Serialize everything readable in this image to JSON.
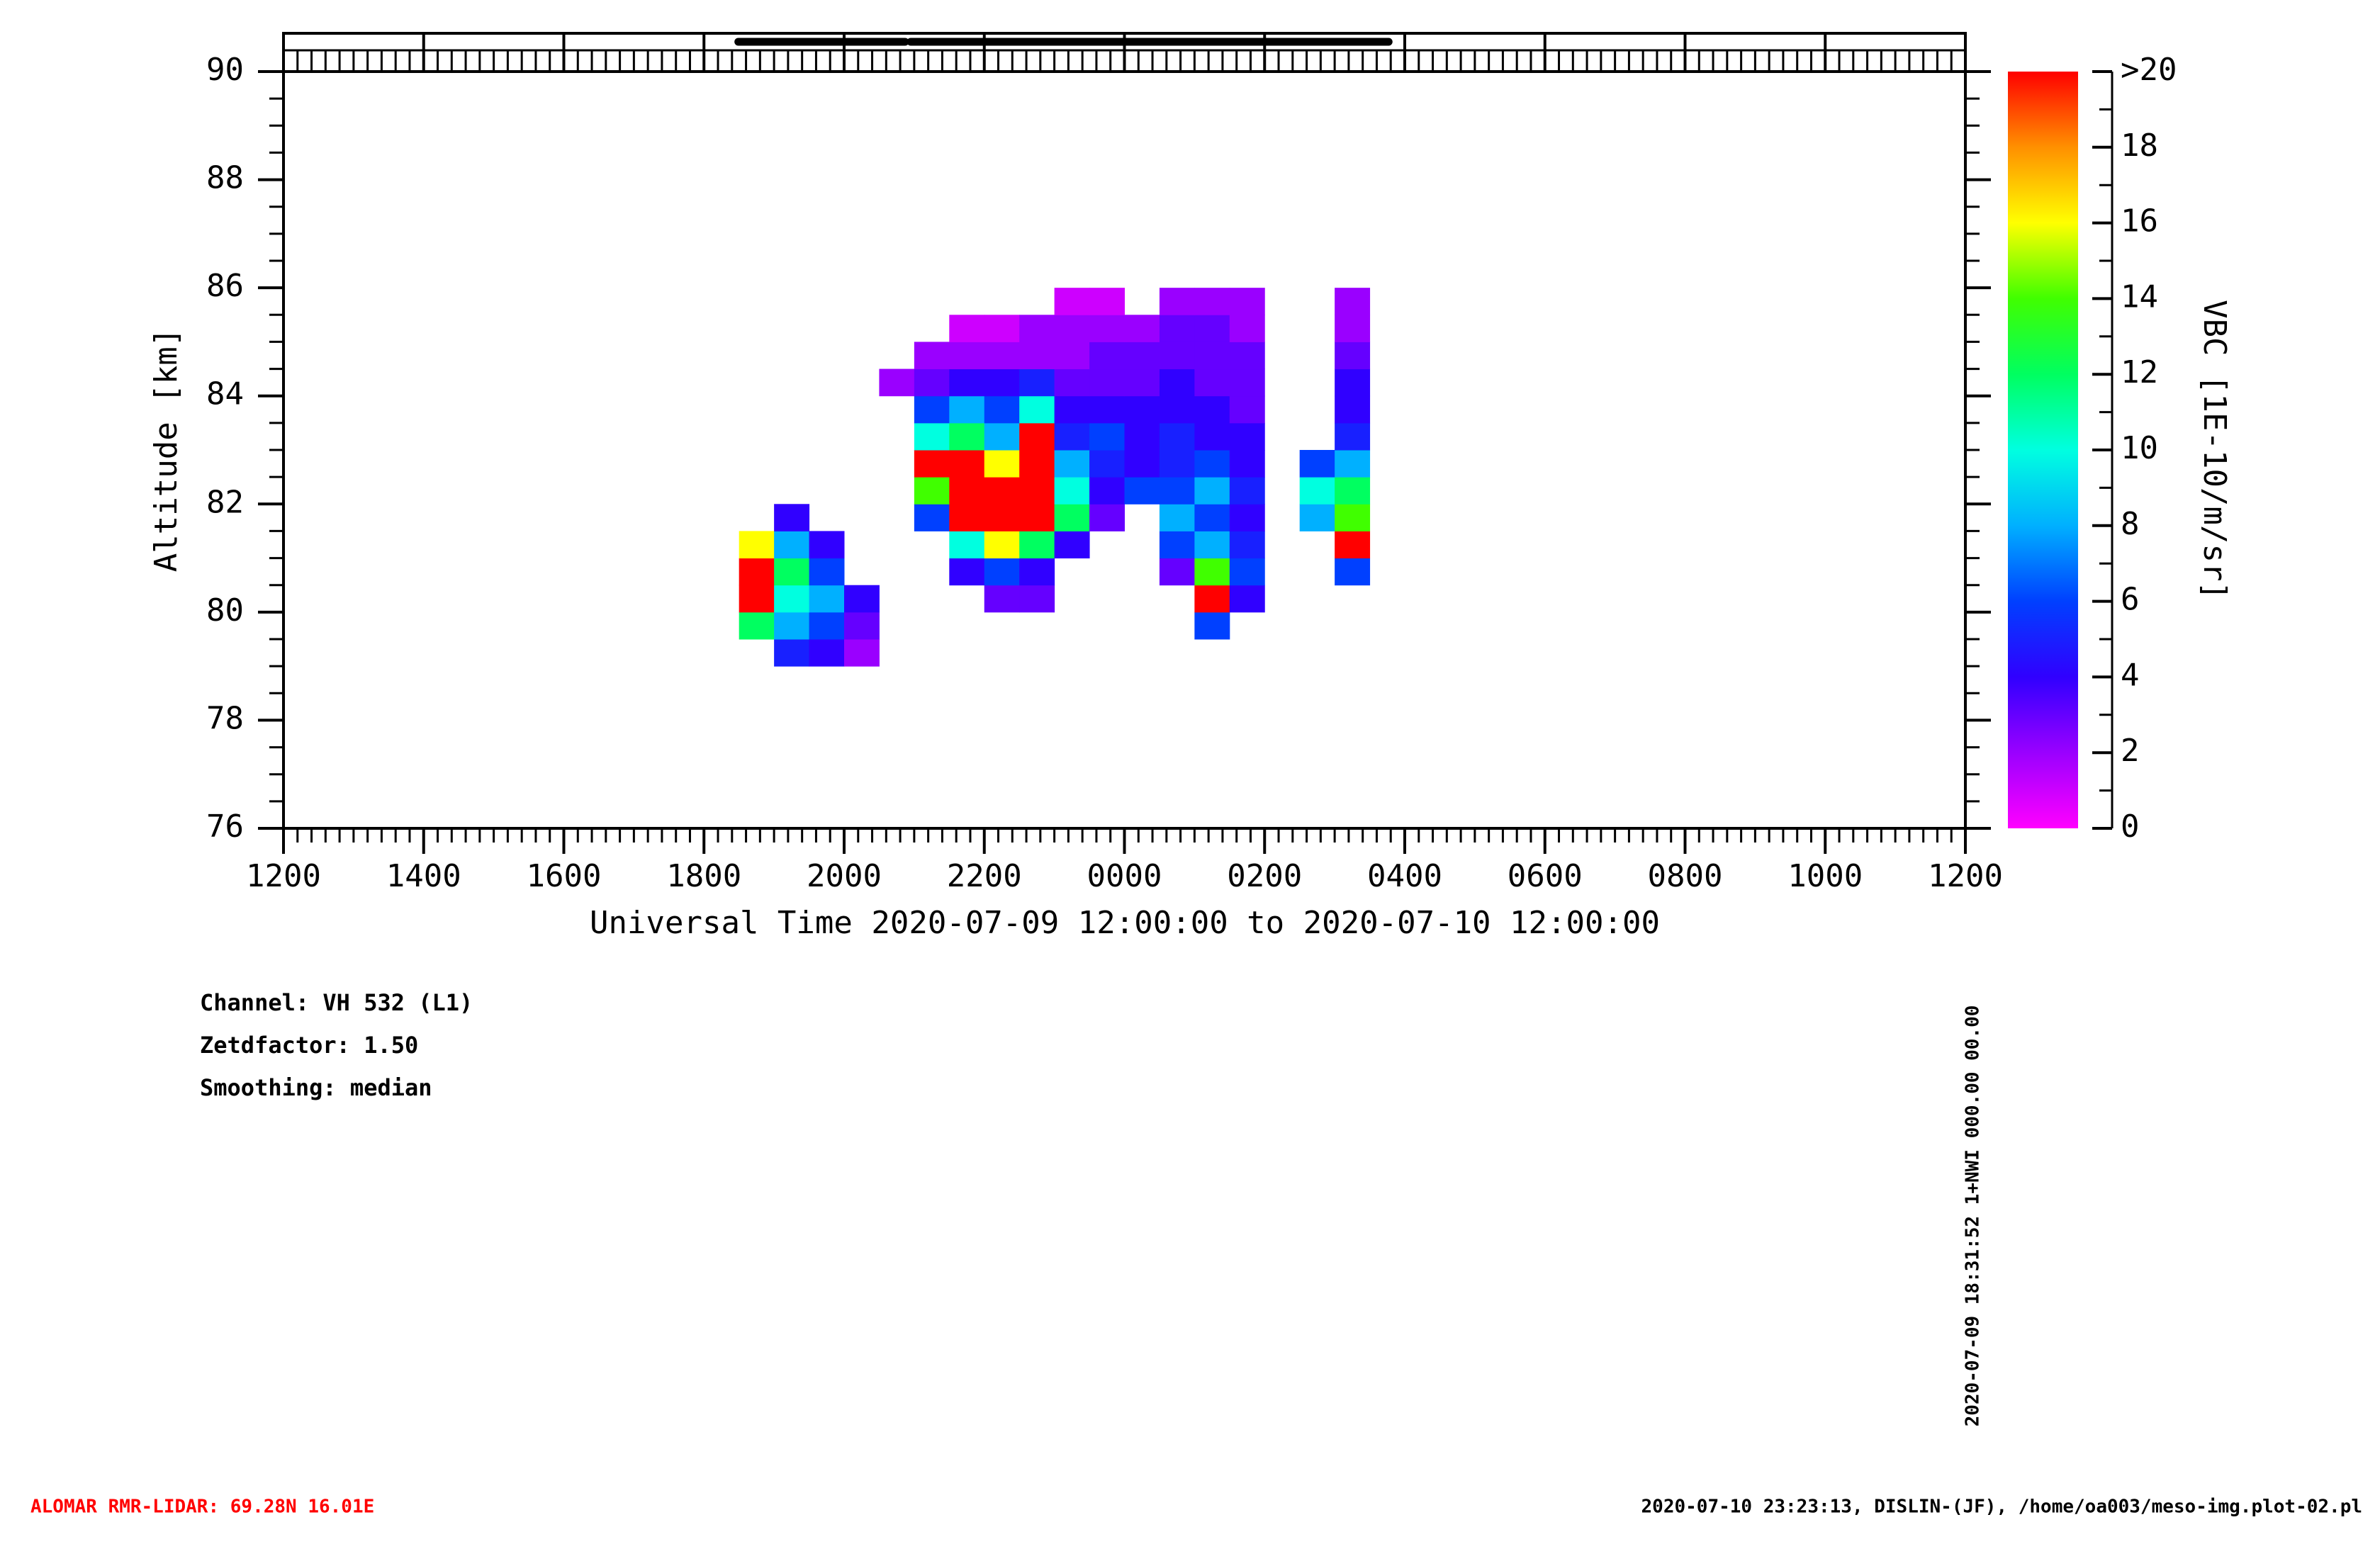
{
  "chart_data": {
    "type": "heatmap",
    "x_label": "Universal Time 2020-07-09 12:00:00 to 2020-07-10 12:00:00",
    "y_label": "Altitude [km]",
    "colorbar_label": "VBC [1E-10/m/sr]",
    "xlim": [
      0,
      24
    ],
    "xticks": [
      {
        "value": 0,
        "label": "1200"
      },
      {
        "value": 2,
        "label": "1400"
      },
      {
        "value": 4,
        "label": "1600"
      },
      {
        "value": 6,
        "label": "1800"
      },
      {
        "value": 8,
        "label": "2000"
      },
      {
        "value": 10,
        "label": "2200"
      },
      {
        "value": 12,
        "label": "0000"
      },
      {
        "value": 14,
        "label": "0200"
      },
      {
        "value": 16,
        "label": "0400"
      },
      {
        "value": 18,
        "label": "0600"
      },
      {
        "value": 20,
        "label": "0800"
      },
      {
        "value": 22,
        "label": "1000"
      },
      {
        "value": 24,
        "label": "1200"
      }
    ],
    "ylim": [
      76,
      90
    ],
    "yticks": [
      76,
      78,
      80,
      82,
      84,
      86,
      88,
      90
    ],
    "zlim": [
      0,
      20
    ],
    "zticks": [
      0,
      2,
      4,
      6,
      8,
      10,
      12,
      14,
      16,
      18,
      {
        "value": 20,
        "label": ">20"
      }
    ],
    "colorscale": [
      "#ff00ff",
      "#9a00ff",
      "#3000ff",
      "#0040ff",
      "#00b0ff",
      "#00ffe0",
      "#00ff60",
      "#40ff00",
      "#ffff00",
      "#ff9000",
      "#ff0000"
    ],
    "coverage": [
      [
        6.49,
        8.87
      ],
      [
        8.95,
        15.77
      ]
    ],
    "x_bins": [
      6.5,
      7,
      7.5,
      8,
      8.5,
      9,
      9.5,
      10,
      10.5,
      11,
      11.5,
      12,
      12.5,
      13,
      13.5,
      14,
      14.5,
      15,
      15.5
    ],
    "y_bins": [
      79,
      79.5,
      80,
      80.5,
      81,
      81.5,
      82,
      82.5,
      83,
      83.5,
      84,
      84.5,
      85,
      85.5,
      86
    ],
    "z": [
      [
        null,
        5,
        4,
        2,
        null,
        null,
        null,
        null,
        null,
        null,
        null,
        null,
        null,
        null,
        null,
        null,
        null,
        null
      ],
      [
        12,
        8,
        6,
        3,
        null,
        null,
        null,
        null,
        null,
        null,
        null,
        null,
        null,
        6,
        null,
        null,
        null,
        null
      ],
      [
        20,
        10,
        8,
        4,
        null,
        null,
        null,
        3,
        3,
        null,
        null,
        null,
        null,
        20,
        4,
        null,
        null,
        null
      ],
      [
        20,
        12,
        6,
        null,
        null,
        null,
        4,
        6,
        4,
        null,
        null,
        null,
        3,
        14,
        6,
        null,
        null,
        6
      ],
      [
        16,
        8,
        4,
        null,
        null,
        null,
        10,
        16,
        12,
        4,
        null,
        null,
        6,
        8,
        5,
        null,
        null,
        20
      ],
      [
        null,
        4,
        null,
        null,
        null,
        6,
        20,
        20,
        20,
        12,
        3,
        null,
        8,
        6,
        4,
        null,
        8,
        14
      ],
      [
        null,
        null,
        null,
        null,
        null,
        14,
        20,
        20,
        20,
        10,
        4,
        6,
        6,
        8,
        5,
        null,
        10,
        12
      ],
      [
        null,
        null,
        null,
        null,
        null,
        20,
        20,
        16,
        20,
        8,
        5,
        4,
        5,
        6,
        4,
        null,
        6,
        8
      ],
      [
        null,
        null,
        null,
        null,
        null,
        10,
        12,
        8,
        20,
        5,
        6,
        4,
        5,
        4,
        4,
        null,
        null,
        5
      ],
      [
        null,
        null,
        null,
        null,
        null,
        6,
        8,
        6,
        10,
        4,
        4,
        4,
        4,
        4,
        3,
        null,
        null,
        4
      ],
      [
        null,
        null,
        null,
        null,
        2,
        3,
        4,
        4,
        5,
        3,
        3,
        3,
        4,
        3,
        3,
        null,
        null,
        4
      ],
      [
        null,
        null,
        null,
        null,
        null,
        2,
        2,
        2,
        2,
        2,
        3,
        3,
        3,
        3,
        3,
        null,
        null,
        3
      ],
      [
        null,
        null,
        null,
        null,
        null,
        null,
        1,
        1,
        2,
        2,
        2,
        2,
        3,
        3,
        2,
        null,
        null,
        2
      ],
      [
        null,
        null,
        null,
        null,
        null,
        null,
        null,
        null,
        null,
        1,
        1,
        null,
        2,
        2,
        2,
        null,
        null,
        2
      ]
    ]
  },
  "info": [
    "Channel: VH 532 (L1)",
    "Zetdfactor: 1.50",
    "Smoothing: median"
  ],
  "stamp": "2020-07-09 18:31:52 1+NWI 000.00 00.00",
  "footer_left": "ALOMAR RMR-LIDAR: 69.28N 16.01E",
  "footer_right": "2020-07-10 23:23:13, DISLIN-(JF), /home/oa003/meso-img.plot-02.pl"
}
